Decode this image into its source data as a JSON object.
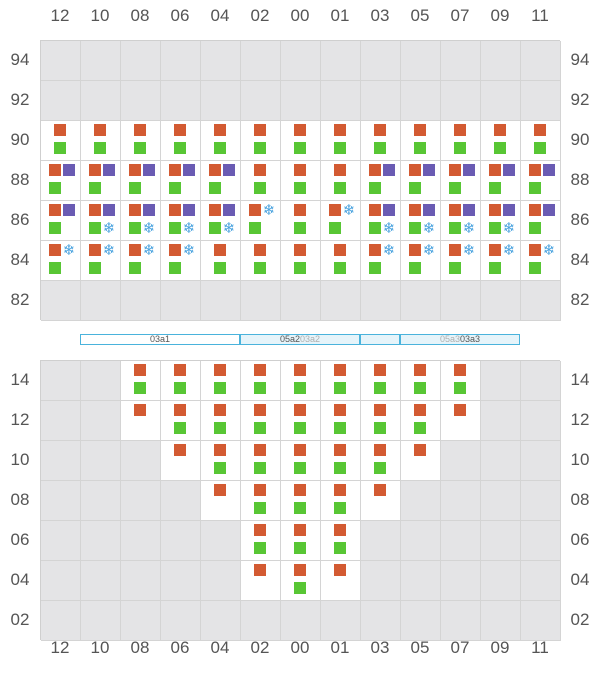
{
  "columns": [
    "12",
    "10",
    "08",
    "06",
    "04",
    "02",
    "00",
    "01",
    "03",
    "05",
    "07",
    "09",
    "11"
  ],
  "top_section": {
    "rows": [
      {
        "label": "94",
        "cells": [
          "E",
          "E",
          "E",
          "E",
          "E",
          "E",
          "E",
          "E",
          "E",
          "E",
          "E",
          "E",
          "E"
        ]
      },
      {
        "label": "92",
        "cells": [
          "E",
          "E",
          "E",
          "E",
          "E",
          "E",
          "E",
          "E",
          "E",
          "E",
          "E",
          "E",
          "E"
        ]
      },
      {
        "label": "90",
        "cells": [
          "rg",
          "rg",
          "rg",
          "rg",
          "rg",
          "rg",
          "rg",
          "rg",
          "rg",
          "rg",
          "rg",
          "rg",
          "rg"
        ]
      },
      {
        "label": "88",
        "cells": [
          "rpg",
          "rpg",
          "rpg",
          "rpg",
          "rpg",
          "rg",
          "rg",
          "rg",
          "rpg",
          "rpg",
          "rpg",
          "rpg",
          "rpg"
        ]
      },
      {
        "label": "86",
        "cells": [
          "rpg",
          "rpgs",
          "rpgs",
          "rpgs",
          "rpgs",
          "rsg",
          "rg",
          "rsg",
          "rpgs",
          "rpgs",
          "rpgs",
          "rpgs",
          "rpg"
        ]
      },
      {
        "label": "84",
        "cells": [
          "rsg",
          "rsg",
          "rsg",
          "rsg",
          "rg",
          "rg",
          "rg",
          "rg",
          "rsg",
          "rsg",
          "rsg",
          "rsg",
          "rsg"
        ]
      },
      {
        "label": "82",
        "cells": [
          "E",
          "E",
          "E",
          "E",
          "E",
          "E",
          "E",
          "E",
          "E",
          "E",
          "E",
          "E",
          "E"
        ]
      }
    ]
  },
  "bays": [
    {
      "label": "03a1",
      "style": "plain"
    },
    {
      "label": "05a2",
      "ghost": "03a2",
      "style": "light"
    },
    {
      "label": "",
      "style": "light"
    },
    {
      "label": "03a3",
      "ghost": "05a3",
      "style": "light"
    }
  ],
  "bottom_section": {
    "rows": [
      {
        "label": "14",
        "cells": [
          "E",
          "E",
          "rg",
          "rg",
          "rg",
          "rg",
          "rg",
          "rg",
          "rg",
          "rg",
          "rg",
          "E",
          "E"
        ]
      },
      {
        "label": "12",
        "cells": [
          "E",
          "E",
          "r",
          "rg",
          "rg",
          "rg",
          "rg",
          "rg",
          "rg",
          "rg",
          "r",
          "E",
          "E"
        ]
      },
      {
        "label": "10",
        "cells": [
          "E",
          "E",
          "E",
          "r",
          "rg",
          "rg",
          "rg",
          "rg",
          "rg",
          "r",
          "E",
          "E",
          "E"
        ]
      },
      {
        "label": "08",
        "cells": [
          "E",
          "E",
          "E",
          "E",
          "r",
          "rg",
          "rg",
          "rg",
          "r",
          "E",
          "E",
          "E",
          "E"
        ]
      },
      {
        "label": "06",
        "cells": [
          "E",
          "E",
          "E",
          "E",
          "E",
          "rg",
          "rg",
          "rg",
          "E",
          "E",
          "E",
          "E",
          "E"
        ]
      },
      {
        "label": "04",
        "cells": [
          "E",
          "E",
          "E",
          "E",
          "E",
          "r",
          "rg",
          "r",
          "E",
          "E",
          "E",
          "E",
          "E"
        ]
      },
      {
        "label": "02",
        "cells": [
          "E",
          "E",
          "E",
          "E",
          "E",
          "E",
          "E",
          "E",
          "E",
          "E",
          "E",
          "E",
          "E"
        ]
      }
    ]
  },
  "legend_codes": {
    "E": "empty",
    "r": "orange",
    "g": "green",
    "p": "purple",
    "s": "snowflake"
  },
  "colors": {
    "orange": "#d35a32",
    "green": "#58c634",
    "purple": "#6a5bb3",
    "snowflake": "#4aa3df",
    "empty": "#e4e4e6"
  },
  "icons": {
    "snowflake": "❄"
  }
}
